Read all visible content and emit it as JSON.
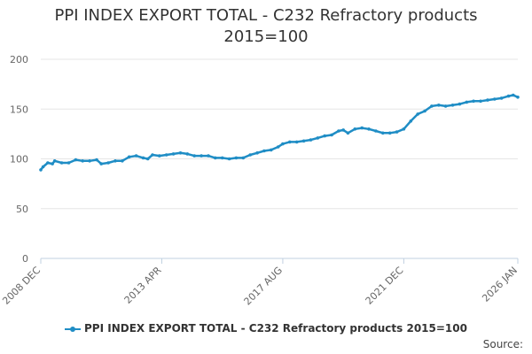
{
  "chart_data": {
    "type": "line",
    "title": "PPI INDEX EXPORT TOTAL - C232 Refractory products 2015=100",
    "title_lines": [
      "PPI INDEX EXPORT TOTAL - C232 Refractory products",
      "2015=100"
    ],
    "xlabel": "",
    "ylabel": "",
    "ylim": [
      0,
      200
    ],
    "yticks": [
      0,
      50,
      100,
      150,
      200
    ],
    "xticks": [
      "2008 DEC",
      "2013 APR",
      "2017 AUG",
      "2021 DEC",
      "2026 JAN"
    ],
    "x_range": [
      "2008 DEC",
      "2026 JAN"
    ],
    "grid": true,
    "legend_position": "bottom",
    "series": [
      {
        "name": "PPI INDEX EXPORT TOTAL - C232 Refractory products 2015=100",
        "color": "#1f8dc5",
        "points": [
          [
            "2008 DEC",
            89
          ],
          [
            "2009 JAN",
            92
          ],
          [
            "2009 MAR",
            96
          ],
          [
            "2009 MAY",
            95
          ],
          [
            "2009 JUN",
            98
          ],
          [
            "2009 SEP",
            96
          ],
          [
            "2009 DEC",
            96
          ],
          [
            "2010 MAR",
            99
          ],
          [
            "2010 JUN",
            98
          ],
          [
            "2010 SEP",
            98
          ],
          [
            "2010 DEC",
            99
          ],
          [
            "2011 FEB",
            95
          ],
          [
            "2011 MAY",
            96
          ],
          [
            "2011 AUG",
            98
          ],
          [
            "2011 NOV",
            98
          ],
          [
            "2012 FEB",
            102
          ],
          [
            "2012 MAY",
            103
          ],
          [
            "2012 AUG",
            101
          ],
          [
            "2012 OCT",
            100
          ],
          [
            "2012 DEC",
            104
          ],
          [
            "2013 MAR",
            103
          ],
          [
            "2013 JUN",
            104
          ],
          [
            "2013 SEP",
            105
          ],
          [
            "2013 DEC",
            106
          ],
          [
            "2014 MAR",
            105
          ],
          [
            "2014 JUN",
            103
          ],
          [
            "2014 SEP",
            103
          ],
          [
            "2014 DEC",
            103
          ],
          [
            "2015 MAR",
            101
          ],
          [
            "2015 JUN",
            101
          ],
          [
            "2015 SEP",
            100
          ],
          [
            "2015 DEC",
            101
          ],
          [
            "2016 MAR",
            101
          ],
          [
            "2016 JUN",
            104
          ],
          [
            "2016 SEP",
            106
          ],
          [
            "2016 DEC",
            108
          ],
          [
            "2017 MAR",
            109
          ],
          [
            "2017 JUN",
            112
          ],
          [
            "2017 AUG",
            115
          ],
          [
            "2017 NOV",
            117
          ],
          [
            "2018 FEB",
            117
          ],
          [
            "2018 MAY",
            118
          ],
          [
            "2018 AUG",
            119
          ],
          [
            "2018 NOV",
            121
          ],
          [
            "2019 FEB",
            123
          ],
          [
            "2019 MAY",
            124
          ],
          [
            "2019 AUG",
            128
          ],
          [
            "2019 OCT",
            129
          ],
          [
            "2019 DEC",
            126
          ],
          [
            "2020 MAR",
            130
          ],
          [
            "2020 JUN",
            131
          ],
          [
            "2020 SEP",
            130
          ],
          [
            "2020 DEC",
            128
          ],
          [
            "2021 MAR",
            126
          ],
          [
            "2021 JUN",
            126
          ],
          [
            "2021 SEP",
            127
          ],
          [
            "2021 DEC",
            130
          ],
          [
            "2022 MAR",
            138
          ],
          [
            "2022 JUN",
            145
          ],
          [
            "2022 SEP",
            148
          ],
          [
            "2022 DEC",
            153
          ],
          [
            "2023 MAR",
            154
          ],
          [
            "2023 JUN",
            153
          ],
          [
            "2023 SEP",
            154
          ],
          [
            "2023 DEC",
            155
          ],
          [
            "2024 MAR",
            157
          ],
          [
            "2024 JUN",
            158
          ],
          [
            "2024 SEP",
            158
          ],
          [
            "2024 DEC",
            159
          ],
          [
            "2025 MAR",
            160
          ],
          [
            "2025 JUN",
            161
          ],
          [
            "2025 SEP",
            163
          ],
          [
            "2025 NOV",
            164
          ],
          [
            "2026 JAN",
            162
          ]
        ]
      }
    ]
  },
  "legend": {
    "label": "PPI INDEX EXPORT TOTAL - C232 Refractory products 2015=100"
  },
  "source": {
    "label": "Source:"
  }
}
